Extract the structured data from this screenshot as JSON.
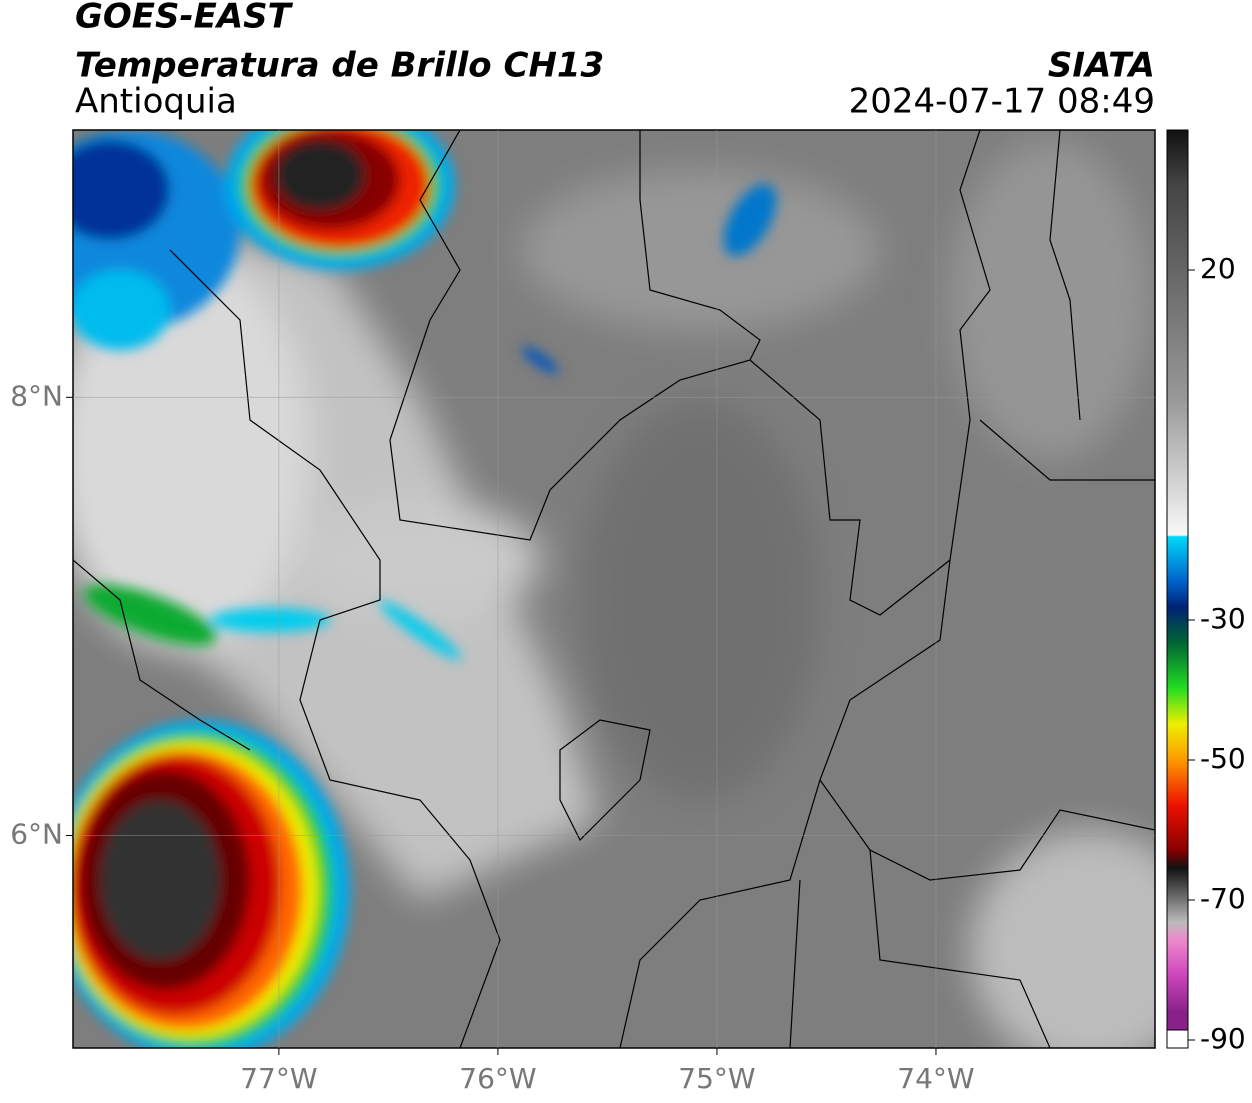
{
  "header": {
    "title": "GOES-EAST",
    "subtitle": "Temperatura de Brillo CH13",
    "region": "Antioquia",
    "source": "SIATA",
    "datetime": "2024-07-17 08:49"
  },
  "map": {
    "xlim": [
      -77.94,
      -73.0
    ],
    "ylim": [
      5.03,
      9.22
    ],
    "xticks": [
      {
        "value": -77,
        "label": "77°W"
      },
      {
        "value": -76,
        "label": "76°W"
      },
      {
        "value": -75,
        "label": "75°W"
      },
      {
        "value": -74,
        "label": "74°W"
      }
    ],
    "yticks": [
      {
        "value": 8,
        "label": "8°N"
      },
      {
        "value": 6,
        "label": "6°N"
      }
    ],
    "grid": true
  },
  "colorbar": {
    "lim": [
      -90,
      40
    ],
    "ticks": [
      20,
      -30,
      -50,
      -70,
      -90
    ]
  }
}
